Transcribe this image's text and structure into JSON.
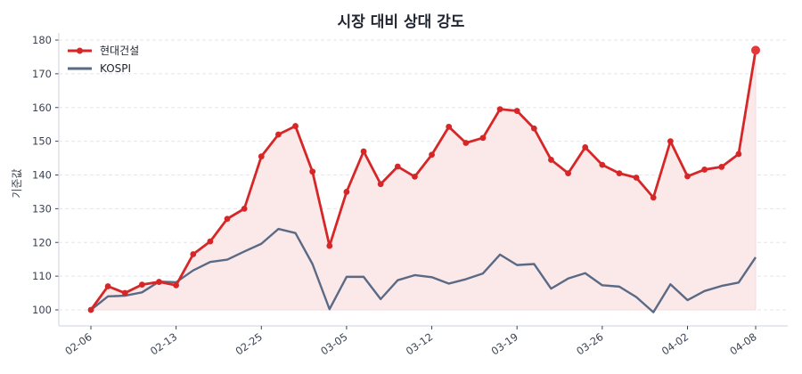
{
  "chart_data": {
    "type": "line",
    "title": "시장 대비 상대 강도",
    "xlabel": "",
    "ylabel": "기준값",
    "ylim": [
      96,
      182
    ],
    "yticks": [
      100,
      110,
      120,
      130,
      140,
      150,
      160,
      170,
      180
    ],
    "grid": "horizontal dashed",
    "legend_position": "upper left",
    "xtick_labels": [
      {
        "index": 0,
        "label": "02-06"
      },
      {
        "index": 5,
        "label": "02-13"
      },
      {
        "index": 10,
        "label": "02-25"
      },
      {
        "index": 15,
        "label": "03-05"
      },
      {
        "index": 20,
        "label": "03-12"
      },
      {
        "index": 25,
        "label": "03-19"
      },
      {
        "index": 30,
        "label": "03-26"
      },
      {
        "index": 35,
        "label": "04-02"
      },
      {
        "index": 39,
        "label": "04-08"
      }
    ],
    "series": [
      {
        "name": "현대건설",
        "color": "#d62728",
        "fill": "#fbe9ea",
        "markers": true,
        "values": [
          100,
          107,
          105,
          107.5,
          108.3,
          107.3,
          116.5,
          120.3,
          127,
          130,
          145.5,
          152,
          154.5,
          141,
          119,
          135,
          147,
          137.3,
          142.5,
          139.5,
          146,
          154.3,
          149.5,
          151,
          159.5,
          159,
          153.8,
          144.5,
          140.5,
          148.2,
          143,
          140.5,
          139.2,
          133.3,
          150,
          139.6,
          141.6,
          142.4,
          146.2,
          177
        ]
      },
      {
        "name": "KOSPI",
        "color": "#5a6a85",
        "markers": false,
        "values": [
          100,
          104,
          104.2,
          105.2,
          108.4,
          108.2,
          111.7,
          114.2,
          114.9,
          117.3,
          119.6,
          124,
          122.8,
          113.6,
          100.2,
          109.8,
          109.8,
          103.2,
          108.8,
          110.3,
          109.7,
          107.8,
          109.1,
          110.8,
          116.4,
          113.3,
          113.6,
          106.3,
          109.3,
          110.9,
          107.3,
          106.9,
          103.8,
          99.3,
          107.6,
          102.9,
          105.6,
          107.1,
          108.1,
          115.6
        ]
      }
    ]
  }
}
